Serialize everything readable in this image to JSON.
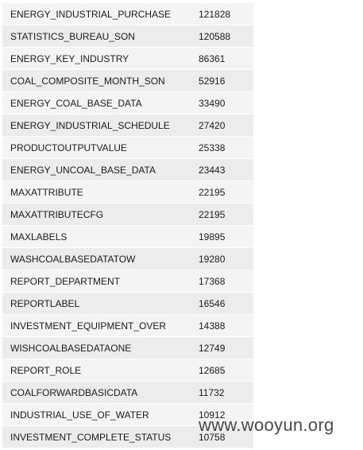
{
  "table": {
    "rows": [
      {
        "name": "ENERGY_INDUSTRIAL_PURCHASE",
        "count": "121828"
      },
      {
        "name": "STATISTICS_BUREAU_SON",
        "count": "120588"
      },
      {
        "name": "ENERGY_KEY_INDUSTRY",
        "count": "86361"
      },
      {
        "name": "COAL_COMPOSITE_MONTH_SON",
        "count": "52916"
      },
      {
        "name": "ENERGY_COAL_BASE_DATA",
        "count": "33490"
      },
      {
        "name": "ENERGY_INDUSTRIAL_SCHEDULE",
        "count": "27420"
      },
      {
        "name": "PRODUCTOUTPUTVALUE",
        "count": "25338"
      },
      {
        "name": "ENERGY_UNCOAL_BASE_DATA",
        "count": "23443"
      },
      {
        "name": "MAXATTRIBUTE",
        "count": "22195"
      },
      {
        "name": "MAXATTRIBUTECFG",
        "count": "22195"
      },
      {
        "name": "MAXLABELS",
        "count": "19895"
      },
      {
        "name": "WASHCOALBASEDATATOW",
        "count": "19280"
      },
      {
        "name": "REPORT_DEPARTMENT",
        "count": "17368"
      },
      {
        "name": "REPORTLABEL",
        "count": "16546"
      },
      {
        "name": "INVESTMENT_EQUIPMENT_OVER",
        "count": "14388"
      },
      {
        "name": "WISHCOALBASEDATAONE",
        "count": "12749"
      },
      {
        "name": "REPORT_ROLE",
        "count": "12685"
      },
      {
        "name": "COALFORWARDBASICDATA",
        "count": "11732"
      },
      {
        "name": "INDUSTRIAL_USE_OF_WATER",
        "count": "10912"
      },
      {
        "name": "INVESTMENT_COMPLETE_STATUS",
        "count": "10758"
      }
    ]
  },
  "watermark": "www.wooyun.org"
}
